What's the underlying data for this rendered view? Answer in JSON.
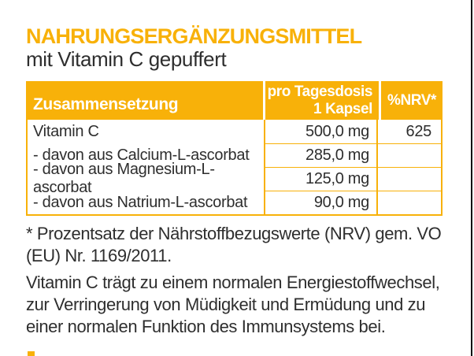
{
  "colors": {
    "accent": "#F8B109",
    "header_text": "#FFFFFF",
    "body_text": "#2E2E2E",
    "edge_line": "#111111"
  },
  "header": {
    "title": "NAHRUNGSERGÄNZUNGSMITTEL",
    "subtitle": "mit Vitamin C gepuffert"
  },
  "table": {
    "col_composition": "Zusammensetzung",
    "col_dose_line1": "pro Tagesdosis",
    "col_dose_line2": "1 Kapsel",
    "col_nrv": "%NRV*",
    "rows": [
      {
        "name": "Vitamin C",
        "amount": "500,0 mg",
        "nrv": "625"
      },
      {
        "name": "- davon aus Calcium-L-ascorbat",
        "amount": "285,0 mg",
        "nrv": ""
      },
      {
        "name": "- davon aus Magnesium-L-ascorbat",
        "amount": "125,0 mg",
        "nrv": ""
      },
      {
        "name": "- davon aus Natrium-L-ascorbat",
        "amount": "90,0 mg",
        "nrv": ""
      }
    ]
  },
  "footnote": {
    "line1": "* Prozentsatz der Nährstoffbezugswerte (NRV) gem. VO",
    "line2": "(EU) Nr. 1169/2011."
  },
  "claim": {
    "line1": "Vitamin C trägt zu einem normalen Energiestoffwechsel,",
    "line2": "zur Verringerung von Müdigkeit und Ermüdung und zu",
    "line3": "einer normalen Funktion des Immunsystems bei."
  }
}
